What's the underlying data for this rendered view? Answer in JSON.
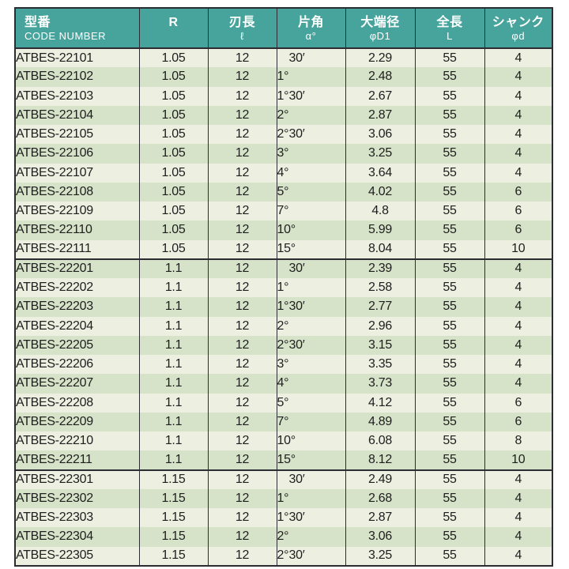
{
  "colors": {
    "page-bg": "#ffffff",
    "header-bg": "#47a49c",
    "header-text": "#ffffff",
    "row-light": "#edefe1",
    "row-dark": "#d6e3c8",
    "border": "#2c2c33",
    "text": "#1e1e1e"
  },
  "table": {
    "columns": [
      {
        "key": "code",
        "line1": "型番",
        "line2": "CODE NUMBER",
        "align": "left"
      },
      {
        "key": "r",
        "line1": "R",
        "line2": "",
        "align": "center"
      },
      {
        "key": "flute",
        "line1": "刃長",
        "line2": "ℓ",
        "align": "center"
      },
      {
        "key": "angle",
        "line1": "片角",
        "line2": "α°",
        "align": "center"
      },
      {
        "key": "d1",
        "line1": "大端径",
        "line2": "φD1",
        "align": "center"
      },
      {
        "key": "len",
        "line1": "全長",
        "line2": "L",
        "align": "center"
      },
      {
        "key": "shank",
        "line1": "シャンク",
        "line2": "φd",
        "align": "center"
      }
    ],
    "rows": [
      {
        "group": 1,
        "code": "ATBES-22101",
        "r": "1.05",
        "flute": "12",
        "angle_deg": "",
        "angle_min": "30′",
        "d1": "2.29",
        "len": "55",
        "shank": "4"
      },
      {
        "group": 1,
        "code": "ATBES-22102",
        "r": "1.05",
        "flute": "12",
        "angle_deg": "1°",
        "angle_min": "",
        "d1": "2.48",
        "len": "55",
        "shank": "4"
      },
      {
        "group": 1,
        "code": "ATBES-22103",
        "r": "1.05",
        "flute": "12",
        "angle_deg": "1°",
        "angle_min": "30′",
        "d1": "2.67",
        "len": "55",
        "shank": "4"
      },
      {
        "group": 1,
        "code": "ATBES-22104",
        "r": "1.05",
        "flute": "12",
        "angle_deg": "2°",
        "angle_min": "",
        "d1": "2.87",
        "len": "55",
        "shank": "4"
      },
      {
        "group": 1,
        "code": "ATBES-22105",
        "r": "1.05",
        "flute": "12",
        "angle_deg": "2°",
        "angle_min": "30′",
        "d1": "3.06",
        "len": "55",
        "shank": "4"
      },
      {
        "group": 1,
        "code": "ATBES-22106",
        "r": "1.05",
        "flute": "12",
        "angle_deg": "3°",
        "angle_min": "",
        "d1": "3.25",
        "len": "55",
        "shank": "4"
      },
      {
        "group": 1,
        "code": "ATBES-22107",
        "r": "1.05",
        "flute": "12",
        "angle_deg": "4°",
        "angle_min": "",
        "d1": "3.64",
        "len": "55",
        "shank": "4"
      },
      {
        "group": 1,
        "code": "ATBES-22108",
        "r": "1.05",
        "flute": "12",
        "angle_deg": "5°",
        "angle_min": "",
        "d1": "4.02",
        "len": "55",
        "shank": "6"
      },
      {
        "group": 1,
        "code": "ATBES-22109",
        "r": "1.05",
        "flute": "12",
        "angle_deg": "7°",
        "angle_min": "",
        "d1": "4.8",
        "len": "55",
        "shank": "6"
      },
      {
        "group": 1,
        "code": "ATBES-22110",
        "r": "1.05",
        "flute": "12",
        "angle_deg": "10°",
        "angle_min": "",
        "d1": "5.99",
        "len": "55",
        "shank": "6"
      },
      {
        "group": 1,
        "code": "ATBES-22111",
        "r": "1.05",
        "flute": "12",
        "angle_deg": "15°",
        "angle_min": "",
        "d1": "8.04",
        "len": "55",
        "shank": "10"
      },
      {
        "group": 2,
        "code": "ATBES-22201",
        "r": "1.1",
        "flute": "12",
        "angle_deg": "",
        "angle_min": "30′",
        "d1": "2.39",
        "len": "55",
        "shank": "4"
      },
      {
        "group": 2,
        "code": "ATBES-22202",
        "r": "1.1",
        "flute": "12",
        "angle_deg": "1°",
        "angle_min": "",
        "d1": "2.58",
        "len": "55",
        "shank": "4"
      },
      {
        "group": 2,
        "code": "ATBES-22203",
        "r": "1.1",
        "flute": "12",
        "angle_deg": "1°",
        "angle_min": "30′",
        "d1": "2.77",
        "len": "55",
        "shank": "4"
      },
      {
        "group": 2,
        "code": "ATBES-22204",
        "r": "1.1",
        "flute": "12",
        "angle_deg": "2°",
        "angle_min": "",
        "d1": "2.96",
        "len": "55",
        "shank": "4"
      },
      {
        "group": 2,
        "code": "ATBES-22205",
        "r": "1.1",
        "flute": "12",
        "angle_deg": "2°",
        "angle_min": "30′",
        "d1": "3.15",
        "len": "55",
        "shank": "4"
      },
      {
        "group": 2,
        "code": "ATBES-22206",
        "r": "1.1",
        "flute": "12",
        "angle_deg": "3°",
        "angle_min": "",
        "d1": "3.35",
        "len": "55",
        "shank": "4"
      },
      {
        "group": 2,
        "code": "ATBES-22207",
        "r": "1.1",
        "flute": "12",
        "angle_deg": "4°",
        "angle_min": "",
        "d1": "3.73",
        "len": "55",
        "shank": "4"
      },
      {
        "group": 2,
        "code": "ATBES-22208",
        "r": "1.1",
        "flute": "12",
        "angle_deg": "5°",
        "angle_min": "",
        "d1": "4.12",
        "len": "55",
        "shank": "6"
      },
      {
        "group": 2,
        "code": "ATBES-22209",
        "r": "1.1",
        "flute": "12",
        "angle_deg": "7°",
        "angle_min": "",
        "d1": "4.89",
        "len": "55",
        "shank": "6"
      },
      {
        "group": 2,
        "code": "ATBES-22210",
        "r": "1.1",
        "flute": "12",
        "angle_deg": "10°",
        "angle_min": "",
        "d1": "6.08",
        "len": "55",
        "shank": "8"
      },
      {
        "group": 2,
        "code": "ATBES-22211",
        "r": "1.1",
        "flute": "12",
        "angle_deg": "15°",
        "angle_min": "",
        "d1": "8.12",
        "len": "55",
        "shank": "10"
      },
      {
        "group": 3,
        "code": "ATBES-22301",
        "r": "1.15",
        "flute": "12",
        "angle_deg": "",
        "angle_min": "30′",
        "d1": "2.49",
        "len": "55",
        "shank": "4"
      },
      {
        "group": 3,
        "code": "ATBES-22302",
        "r": "1.15",
        "flute": "12",
        "angle_deg": "1°",
        "angle_min": "",
        "d1": "2.68",
        "len": "55",
        "shank": "4"
      },
      {
        "group": 3,
        "code": "ATBES-22303",
        "r": "1.15",
        "flute": "12",
        "angle_deg": "1°",
        "angle_min": "30′",
        "d1": "2.87",
        "len": "55",
        "shank": "4"
      },
      {
        "group": 3,
        "code": "ATBES-22304",
        "r": "1.15",
        "flute": "12",
        "angle_deg": "2°",
        "angle_min": "",
        "d1": "3.06",
        "len": "55",
        "shank": "4"
      },
      {
        "group": 3,
        "code": "ATBES-22305",
        "r": "1.15",
        "flute": "12",
        "angle_deg": "2°",
        "angle_min": "30′",
        "d1": "3.25",
        "len": "55",
        "shank": "4"
      }
    ]
  }
}
